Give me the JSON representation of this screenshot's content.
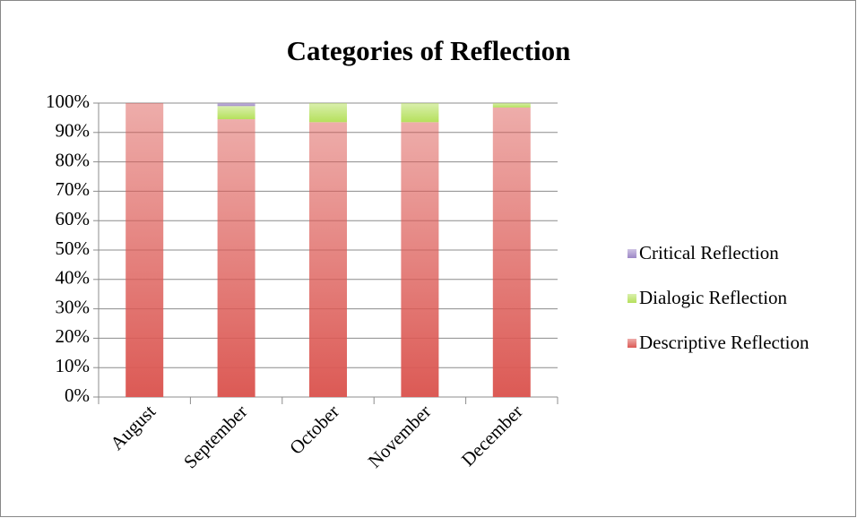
{
  "chart_data": {
    "type": "stacked_bar",
    "title": "Categories of Reflection",
    "categories": [
      "August",
      "September",
      "October",
      "November",
      "December"
    ],
    "series": [
      {
        "name": "Descriptive Reflection",
        "color": "#dc5a55",
        "values": [
          100,
          94.5,
          93.5,
          93.5,
          98.5
        ]
      },
      {
        "name": "Dialogic Reflection",
        "color": "#b5e05c",
        "values": [
          0,
          4.5,
          6.5,
          6.5,
          1.5
        ]
      },
      {
        "name": "Critical Reflection",
        "color": "#9d87c6",
        "values": [
          0,
          1,
          0,
          0,
          0
        ]
      }
    ],
    "ylim": [
      0,
      100
    ],
    "yticks": [
      {
        "value": 0,
        "label": "0%"
      },
      {
        "value": 10,
        "label": "10%"
      },
      {
        "value": 20,
        "label": "20%"
      },
      {
        "value": 30,
        "label": "30%"
      },
      {
        "value": 40,
        "label": "40%"
      },
      {
        "value": 50,
        "label": "50%"
      },
      {
        "value": 60,
        "label": "60%"
      },
      {
        "value": 70,
        "label": "70%"
      },
      {
        "value": 80,
        "label": "80%"
      },
      {
        "value": 90,
        "label": "90%"
      },
      {
        "value": 100,
        "label": "100%"
      }
    ],
    "grid": true,
    "legend": "right"
  }
}
